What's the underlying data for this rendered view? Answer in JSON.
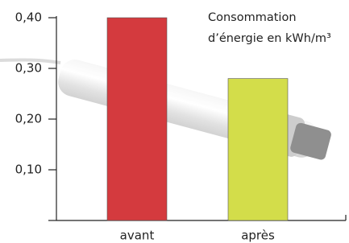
{
  "chart_data": {
    "type": "bar",
    "title": "Consommation d’énergie en kWh/m³",
    "categories": [
      "avant",
      "après"
    ],
    "values": [
      0.4,
      0.28
    ],
    "colors": [
      "#d43a3e",
      "#d3dd4a"
    ],
    "ylim": [
      0,
      0.4
    ],
    "yticks": [
      {
        "value": 0.1,
        "label": "0,10"
      },
      {
        "value": 0.2,
        "label": "0,20"
      },
      {
        "value": 0.3,
        "label": "0,30"
      },
      {
        "value": 0.4,
        "label": "0,40"
      }
    ],
    "grid": false
  }
}
